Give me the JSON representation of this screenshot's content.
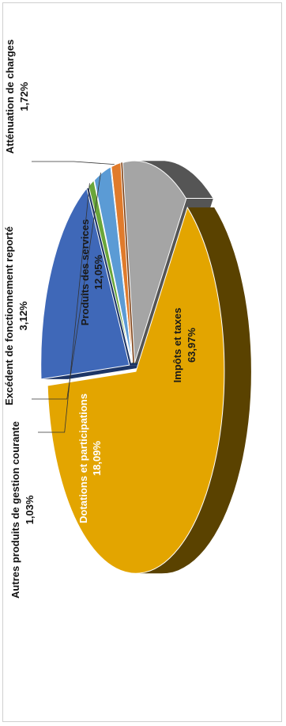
{
  "chart_data": {
    "type": "pie",
    "style": "3d-exploded",
    "slices": [
      {
        "key": "impots",
        "label": "Impôts et taxes",
        "value_label": "63,97%",
        "value": 63.97,
        "color": "#e3a500",
        "side_color": "#5a4200",
        "label_inside": true
      },
      {
        "key": "dotations",
        "label": "Dotations et participations",
        "value_label": "18,09%",
        "value": 18.09,
        "color": "#3f68b8",
        "side_color": "#1d3566",
        "label_inside": true
      },
      {
        "key": "autres",
        "label": "Autres produits de gestion courante",
        "value_label": "1,03%",
        "value": 1.03,
        "color": "#6aa63a",
        "side_color": "#2f5a18",
        "label_inside": false
      },
      {
        "key": "excedent",
        "label": "Excédent de fonctionnement reporté",
        "value_label": "3,12%",
        "value": 3.12,
        "color": "#5b9bd5",
        "side_color": "#2e5c86",
        "label_inside": false
      },
      {
        "key": "attenuation",
        "label": "Atténuation de charges",
        "value_label": "1,72%",
        "value": 1.72,
        "color": "#e07b2c",
        "side_color": "#7a3c10",
        "label_inside": false
      },
      {
        "key": "services",
        "label": "Produits des services",
        "value_label": "12,05%",
        "value": 12.05,
        "color": "#a5a5a5",
        "side_color": "#555555",
        "label_inside": true
      }
    ]
  }
}
